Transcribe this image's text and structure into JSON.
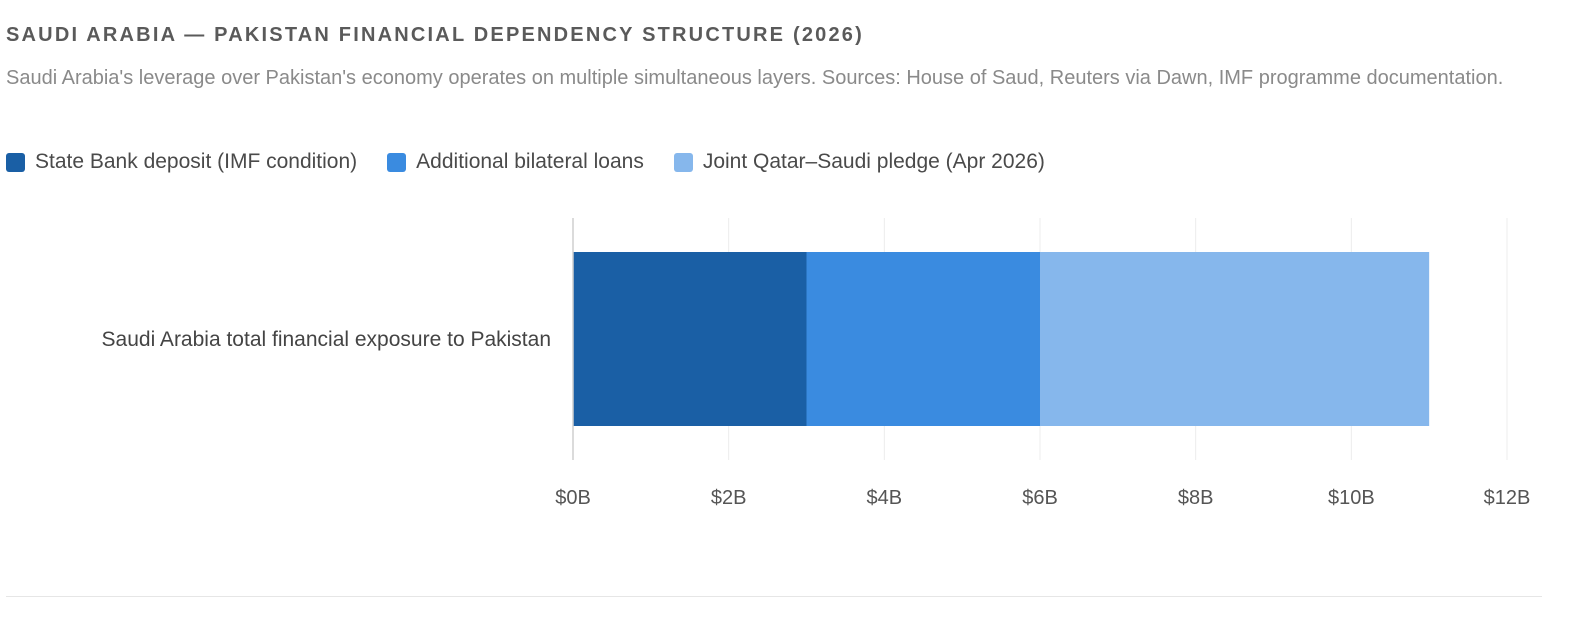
{
  "chart_data": {
    "type": "bar",
    "orientation": "horizontal",
    "stacked": true,
    "title": "SAUDI ARABIA — PAKISTAN FINANCIAL DEPENDENCY STRUCTURE (2026)",
    "subtitle": "Saudi Arabia's leverage over Pakistan's economy operates on multiple simultaneous layers. Sources: House of Saud, Reuters via Dawn, IMF programme documentation.",
    "categories": [
      "Saudi Arabia total financial exposure to Pakistan"
    ],
    "series": [
      {
        "name": "State Bank deposit (IMF condition)",
        "values": [
          3
        ],
        "color": "#1a5fa5"
      },
      {
        "name": "Additional bilateral loans",
        "values": [
          3
        ],
        "color": "#3a8be0"
      },
      {
        "name": "Joint Qatar–Saudi pledge (Apr 2026)",
        "values": [
          5
        ],
        "color": "#86b7ec"
      }
    ],
    "xlim": [
      0,
      12
    ],
    "xticks": [
      0,
      2,
      4,
      6,
      8,
      10,
      12
    ],
    "xtick_labels": [
      "$0B",
      "$2B",
      "$4B",
      "$6B",
      "$8B",
      "$10B",
      "$12B"
    ],
    "xlabel": "",
    "ylabel": "",
    "grid": true,
    "legend_position": "top-left"
  },
  "colors": {
    "grid": "#ececec",
    "axis": "#cfcfcf",
    "tick_text": "#555555",
    "category_text": "#444444"
  }
}
